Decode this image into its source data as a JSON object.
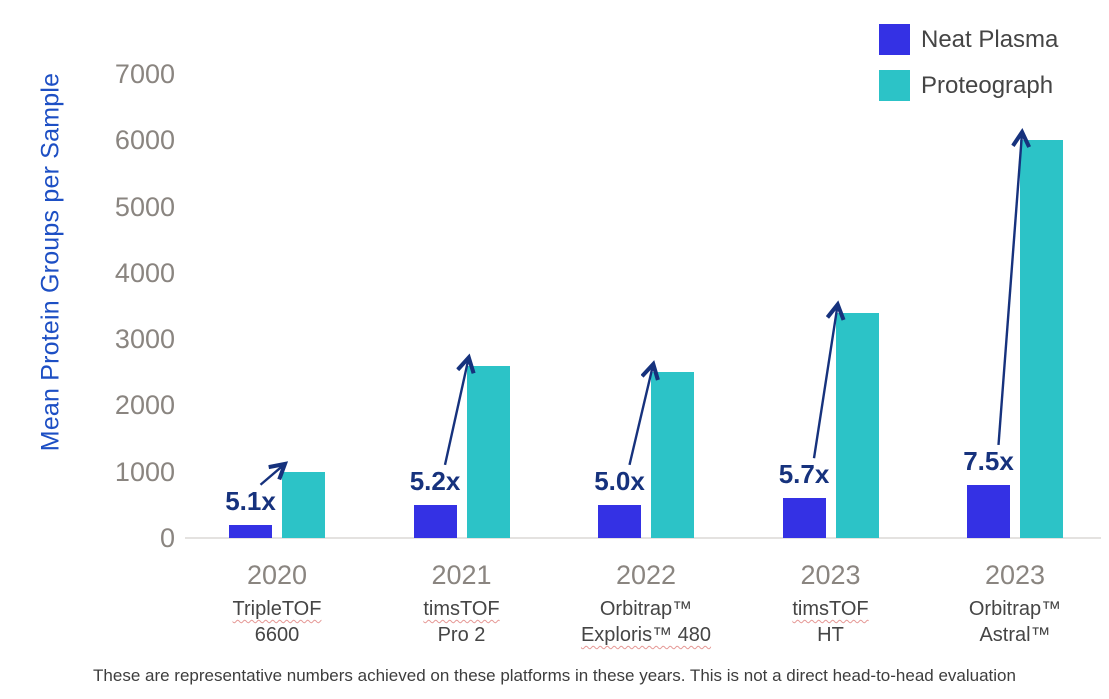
{
  "chart_data": {
    "type": "bar",
    "title": "",
    "xlabel": "",
    "ylabel": "Mean Protein Groups per Sample",
    "ylim": [
      0,
      7000
    ],
    "yticks": [
      0,
      1000,
      2000,
      3000,
      4000,
      5000,
      6000,
      7000
    ],
    "grid": false,
    "legend_position": "top-right",
    "series": [
      {
        "name": "Neat Plasma",
        "color": "#3431e4",
        "values": [
          200,
          500,
          500,
          600,
          800
        ]
      },
      {
        "name": "Proteograph",
        "color": "#2cc3c7",
        "values": [
          1000,
          2600,
          2500,
          3400,
          6000
        ]
      }
    ],
    "categories": [
      {
        "year": "2020",
        "platform_lines": [
          "TripleTOF",
          "6600"
        ],
        "misspelled_lines": [
          true,
          false
        ],
        "fold_change": "5.1x"
      },
      {
        "year": "2021",
        "platform_lines": [
          "timsTOF",
          "Pro 2"
        ],
        "misspelled_lines": [
          true,
          false
        ],
        "fold_change": "5.2x"
      },
      {
        "year": "2022",
        "platform_lines": [
          "Orbitrap™",
          "Exploris™ 480"
        ],
        "misspelled_lines": [
          false,
          true
        ],
        "fold_change": "5.0x"
      },
      {
        "year": "2023",
        "platform_lines": [
          "timsTOF",
          "HT"
        ],
        "misspelled_lines": [
          true,
          false
        ],
        "fold_change": "5.7x"
      },
      {
        "year": "2023",
        "platform_lines": [
          "Orbitrap™",
          "Astral™"
        ],
        "misspelled_lines": [
          false,
          false
        ],
        "fold_change": "7.5x"
      }
    ],
    "annotations": [
      "5.1x",
      "5.2x",
      "5.0x",
      "5.7x",
      "7.5x"
    ]
  },
  "footnote": "These are representative numbers achieved on these platforms in these years. This is not a direct head-to-head evaluation",
  "colors": {
    "neat_plasma": "#3431e4",
    "proteograph": "#2cc3c7",
    "fold_label": "#16327d",
    "arrow": "#16327d",
    "axis_title": "#1d4fc4",
    "tick_label": "#8a8580",
    "year_label": "#8a8580",
    "platform_label": "#454545",
    "footnote_text": "#3d3d3d",
    "baseline": "#e4e2e0"
  }
}
